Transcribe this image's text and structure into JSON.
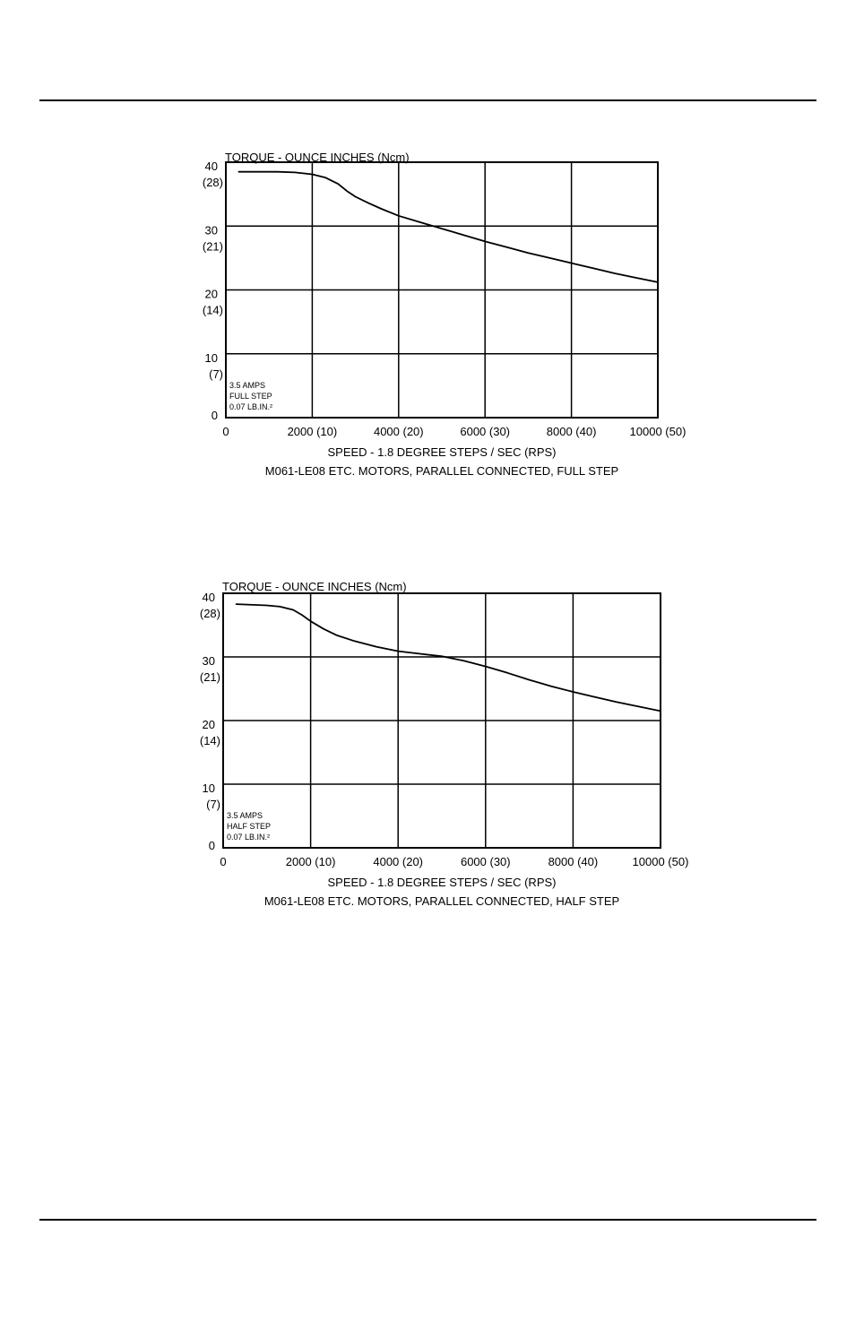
{
  "chart_data": [
    {
      "type": "line",
      "title": "TORQUE - OUNCE INCHES (Ncm)",
      "xlabel": "SPEED - 1.8 DEGREE STEPS / SEC (RPS)",
      "caption": "M061-LE08 ETC. MOTORS, PARALLEL CONNECTED, FULL STEP",
      "annotation": [
        "3.5 AMPS",
        "FULL STEP",
        "0.07 LB.IN.²"
      ],
      "xlim": [
        0,
        10000
      ],
      "ylim": [
        0,
        40
      ],
      "grid": true,
      "x_ticks": [
        "0",
        "2000 (10)",
        "4000 (20)",
        "6000 (30)",
        "8000 (40)",
        "10000 (50)"
      ],
      "y_ticks": [
        {
          "value": 40,
          "label": "40",
          "sub": "(28)"
        },
        {
          "value": 30,
          "label": "30",
          "sub": "(21)"
        },
        {
          "value": 20,
          "label": "20",
          "sub": "(14)"
        },
        {
          "value": 10,
          "label": "10",
          "sub": "(7)"
        },
        {
          "value": 0,
          "label": "0",
          "sub": ""
        }
      ],
      "series": [
        {
          "x": [
            300,
            1000,
            1200,
            1600,
            2000,
            2300,
            2600,
            2800,
            3000,
            3300,
            3600,
            4000,
            4500,
            5000,
            5500,
            6000,
            6500,
            7000,
            7500,
            8000,
            8500,
            9000,
            9500,
            10000
          ],
          "y": [
            38.5,
            38.5,
            38.5,
            38.4,
            38.1,
            37.6,
            36.6,
            35.5,
            34.6,
            33.6,
            32.7,
            31.6,
            30.6,
            29.6,
            28.6,
            27.6,
            26.7,
            25.8,
            25.0,
            24.2,
            23.4,
            22.6,
            21.9,
            21.2
          ]
        }
      ]
    },
    {
      "type": "line",
      "title": "TORQUE - OUNCE INCHES (Ncm)",
      "xlabel": "SPEED - 1.8 DEGREE STEPS / SEC (RPS)",
      "caption": "M061-LE08 ETC. MOTORS, PARALLEL CONNECTED, HALF STEP",
      "annotation": [
        "3.5 AMPS",
        "HALF STEP",
        "0.07 LB.IN.²"
      ],
      "xlim": [
        0,
        10000
      ],
      "ylim": [
        0,
        40
      ],
      "grid": true,
      "x_ticks": [
        "0",
        "2000 (10)",
        "4000 (20)",
        "6000 (30)",
        "8000 (40)",
        "10000 (50)"
      ],
      "y_ticks": [
        {
          "value": 40,
          "label": "40",
          "sub": "(28)"
        },
        {
          "value": 30,
          "label": "30",
          "sub": "(21)"
        },
        {
          "value": 20,
          "label": "20",
          "sub": "(14)"
        },
        {
          "value": 10,
          "label": "10",
          "sub": "(7)"
        },
        {
          "value": 0,
          "label": "0",
          "sub": ""
        }
      ],
      "series": [
        {
          "x": [
            300,
            1000,
            1300,
            1600,
            1800,
            2000,
            2300,
            2600,
            3000,
            3500,
            4000,
            4500,
            5000,
            5500,
            6000,
            6500,
            7000,
            7500,
            8000,
            8500,
            9000,
            9500,
            10000
          ],
          "y": [
            38.3,
            38.1,
            37.9,
            37.4,
            36.6,
            35.6,
            34.4,
            33.4,
            32.5,
            31.6,
            30.9,
            30.5,
            30.1,
            29.4,
            28.5,
            27.5,
            26.4,
            25.4,
            24.5,
            23.7,
            22.9,
            22.2,
            21.5
          ]
        }
      ]
    }
  ]
}
